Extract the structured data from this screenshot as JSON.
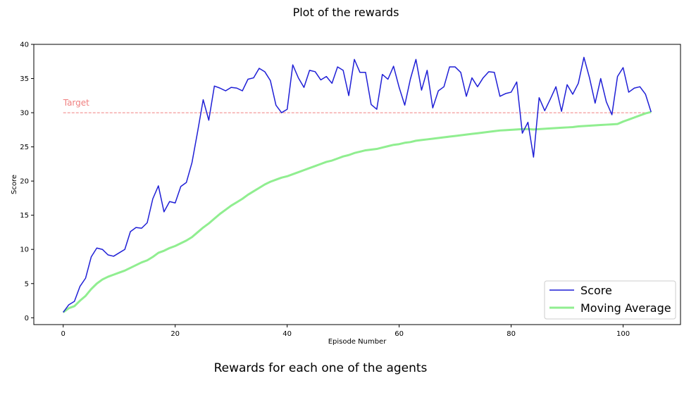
{
  "page": {
    "title": "Plot of the rewards",
    "caption": "Rewards for each one of the agents"
  },
  "chart_data": {
    "type": "line",
    "xlabel": "Episode Number",
    "ylabel": "Score",
    "xlim": [
      -5.25,
      110.25
    ],
    "ylim": [
      -1,
      40
    ],
    "xticks": [
      0,
      20,
      40,
      60,
      80,
      100
    ],
    "yticks": [
      0,
      5,
      10,
      15,
      20,
      25,
      30,
      35,
      40
    ],
    "grid": false,
    "legend": "lower-right",
    "annotation": {
      "text": "Target",
      "y": 30,
      "color": "#f08080"
    },
    "series": [
      {
        "name": "Score",
        "color": "#1f1fd6",
        "x": [
          0,
          1,
          2,
          3,
          4,
          5,
          6,
          7,
          8,
          9,
          10,
          11,
          12,
          13,
          14,
          15,
          16,
          17,
          18,
          19,
          20,
          21,
          22,
          23,
          24,
          25,
          26,
          27,
          28,
          29,
          30,
          31,
          32,
          33,
          34,
          35,
          36,
          37,
          38,
          39,
          40,
          41,
          42,
          43,
          44,
          45,
          46,
          47,
          48,
          49,
          50,
          51,
          52,
          53,
          54,
          55,
          56,
          57,
          58,
          59,
          60,
          61,
          62,
          63,
          64,
          65,
          66,
          67,
          68,
          69,
          70,
          71,
          72,
          73,
          74,
          75,
          76,
          77,
          78,
          79,
          80,
          81,
          82,
          83,
          84,
          85,
          86,
          87,
          88,
          89,
          90,
          91,
          92,
          93,
          94,
          95,
          96,
          97,
          98,
          99,
          100,
          101,
          102,
          103,
          104,
          105
        ],
        "values": [
          0.8,
          1.9,
          2.4,
          4.6,
          5.8,
          8.9,
          10.2,
          10.0,
          9.2,
          9.0,
          9.5,
          10.0,
          12.6,
          13.2,
          13.1,
          13.9,
          17.4,
          19.3,
          15.5,
          17.0,
          16.8,
          19.2,
          19.8,
          22.7,
          27.2,
          31.9,
          28.9,
          33.9,
          33.6,
          33.2,
          33.7,
          33.6,
          33.2,
          34.9,
          35.1,
          36.5,
          36.0,
          34.7,
          31.1,
          30.0,
          30.5,
          37.0,
          35.1,
          33.7,
          36.2,
          36.0,
          34.8,
          35.3,
          34.3,
          36.7,
          36.2,
          32.5,
          37.8,
          35.9,
          35.9,
          31.2,
          30.5,
          35.6,
          34.9,
          36.8,
          33.7,
          31.1,
          34.9,
          37.8,
          33.3,
          36.2,
          30.7,
          33.2,
          33.8,
          36.7,
          36.7,
          35.9,
          32.4,
          35.1,
          33.8,
          35.1,
          36.0,
          35.9,
          32.4,
          32.8,
          33.0,
          34.5,
          27.0,
          28.6,
          23.5,
          32.2,
          30.3,
          32.0,
          33.8,
          30.2,
          34.1,
          32.7,
          34.3,
          38.1,
          35.1,
          31.4,
          35.0,
          31.6,
          29.7,
          35.3,
          36.6,
          33.0,
          33.6,
          33.8,
          32.7,
          30.1
        ]
      },
      {
        "name": "Moving Average",
        "color": "#90ee90",
        "x": [
          0,
          1,
          2,
          3,
          4,
          5,
          6,
          7,
          8,
          9,
          10,
          11,
          12,
          13,
          14,
          15,
          16,
          17,
          18,
          19,
          20,
          21,
          22,
          23,
          24,
          25,
          26,
          27,
          28,
          29,
          30,
          31,
          32,
          33,
          34,
          35,
          36,
          37,
          38,
          39,
          40,
          41,
          42,
          43,
          44,
          45,
          46,
          47,
          48,
          49,
          50,
          51,
          52,
          53,
          54,
          55,
          56,
          57,
          58,
          59,
          60,
          61,
          62,
          63,
          64,
          65,
          66,
          67,
          68,
          69,
          70,
          71,
          72,
          73,
          74,
          75,
          76,
          77,
          78,
          79,
          80,
          81,
          82,
          83,
          84,
          85,
          86,
          87,
          88,
          89,
          90,
          91,
          92,
          93,
          94,
          95,
          96,
          97,
          98,
          99,
          100,
          101,
          102,
          103,
          104,
          105
        ],
        "values": [
          0.8,
          1.4,
          1.7,
          2.5,
          3.2,
          4.2,
          5.0,
          5.6,
          6.0,
          6.3,
          6.6,
          6.9,
          7.3,
          7.7,
          8.1,
          8.4,
          8.9,
          9.5,
          9.8,
          10.2,
          10.5,
          10.9,
          11.3,
          11.8,
          12.5,
          13.2,
          13.8,
          14.5,
          15.2,
          15.8,
          16.4,
          16.9,
          17.4,
          18.0,
          18.5,
          19.0,
          19.5,
          19.9,
          20.2,
          20.5,
          20.7,
          21.0,
          21.3,
          21.6,
          21.9,
          22.2,
          22.5,
          22.8,
          23.0,
          23.3,
          23.6,
          23.8,
          24.1,
          24.3,
          24.5,
          24.6,
          24.7,
          24.9,
          25.1,
          25.3,
          25.4,
          25.6,
          25.7,
          25.9,
          26.0,
          26.1,
          26.2,
          26.3,
          26.4,
          26.5,
          26.6,
          26.7,
          26.8,
          26.9,
          27.0,
          27.1,
          27.2,
          27.3,
          27.4,
          27.45,
          27.5,
          27.55,
          27.6,
          27.6,
          27.55,
          27.6,
          27.65,
          27.7,
          27.75,
          27.8,
          27.85,
          27.9,
          28.0,
          28.05,
          28.1,
          28.15,
          28.2,
          28.25,
          28.3,
          28.35,
          28.7,
          29.0,
          29.3,
          29.6,
          29.9,
          30.1
        ]
      }
    ]
  }
}
